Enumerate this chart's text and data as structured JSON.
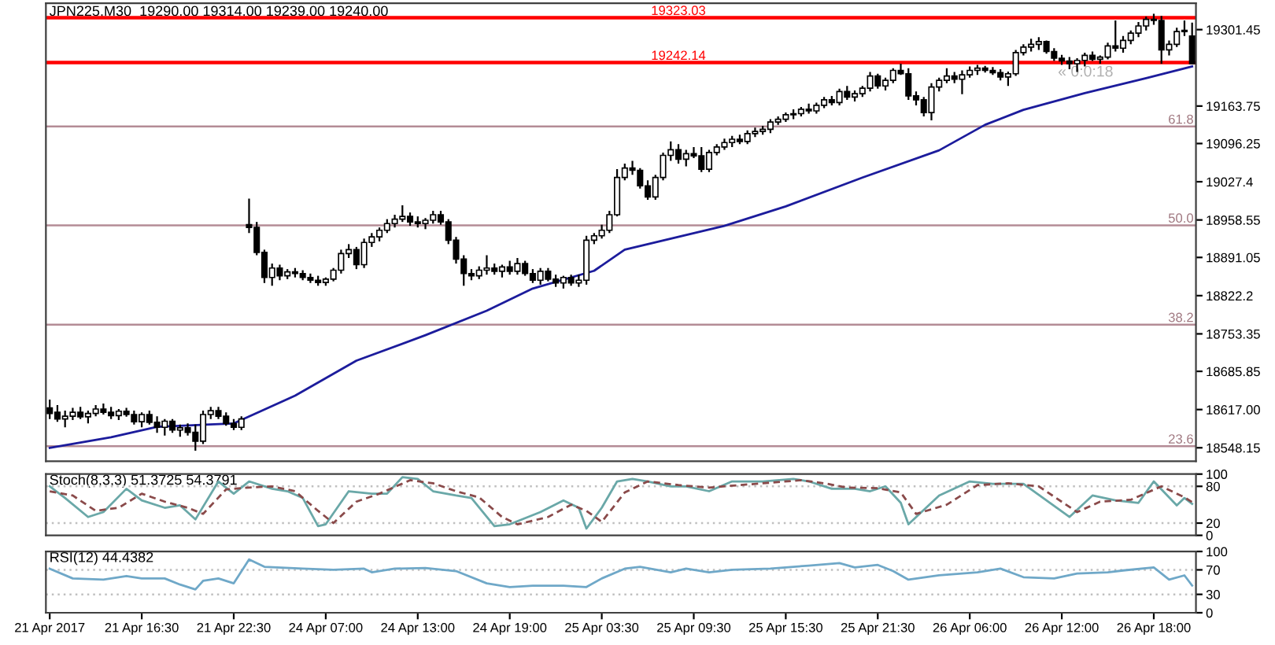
{
  "chart_data": [
    {
      "type": "candlestick",
      "title": "JPN225,M30  19290.00 19314.00 19239.00 19240.00",
      "categories": [
        null,
        null,
        null,
        null,
        null,
        null,
        null,
        null,
        null,
        null,
        null,
        null,
        null,
        null,
        null,
        null,
        null,
        null,
        null,
        null,
        null,
        null,
        null,
        null,
        null,
        null,
        null,
        null,
        null,
        null,
        null,
        null,
        null,
        null,
        null,
        null,
        null,
        null,
        null,
        null,
        null,
        null,
        null,
        null,
        null,
        null,
        null,
        null,
        null,
        null,
        null,
        null,
        null,
        null,
        null,
        null,
        null,
        null,
        null,
        null,
        null,
        null,
        null,
        null,
        null,
        null,
        null,
        null,
        null,
        null,
        null,
        null,
        null,
        null,
        null,
        null,
        null,
        null,
        null,
        null,
        null,
        null,
        null,
        null,
        null,
        null,
        null,
        null,
        null,
        null,
        null,
        null,
        null,
        null,
        null,
        null,
        null,
        null,
        null,
        null,
        null,
        null,
        null,
        null,
        null,
        null,
        null,
        null,
        null,
        null,
        null,
        null,
        null,
        null,
        null,
        null,
        null,
        null,
        null,
        null,
        null,
        null,
        null,
        null,
        null,
        null,
        null,
        null,
        null,
        null,
        null,
        null,
        null,
        null,
        null,
        null,
        null,
        null,
        null,
        null,
        null,
        null,
        null,
        null,
        null,
        null,
        null,
        null,
        null,
        null
      ],
      "ohlc": [
        [
          18620,
          18635,
          18600,
          18610
        ],
        [
          18612,
          18625,
          18595,
          18600
        ],
        [
          18600,
          18615,
          18585,
          18605
        ],
        [
          18605,
          18620,
          18598,
          18612
        ],
        [
          18612,
          18622,
          18600,
          18604
        ],
        [
          18604,
          18615,
          18592,
          18610
        ],
        [
          18610,
          18625,
          18605,
          18618
        ],
        [
          18618,
          18628,
          18608,
          18612
        ],
        [
          18612,
          18622,
          18600,
          18606
        ],
        [
          18606,
          18618,
          18598,
          18614
        ],
        [
          18614,
          18620,
          18604,
          18608
        ],
        [
          18608,
          18615,
          18590,
          18595
        ],
        [
          18595,
          18612,
          18585,
          18608
        ],
        [
          18608,
          18615,
          18590,
          18594
        ],
        [
          18594,
          18605,
          18575,
          18585
        ],
        [
          18585,
          18600,
          18570,
          18596
        ],
        [
          18596,
          18600,
          18575,
          18580
        ],
        [
          18580,
          18590,
          18568,
          18584
        ],
        [
          18584,
          18592,
          18570,
          18576
        ],
        [
          18576,
          18590,
          18543,
          18560
        ],
        [
          18560,
          18615,
          18555,
          18608
        ],
        [
          18608,
          18622,
          18600,
          18615
        ],
        [
          18615,
          18622,
          18600,
          18605
        ],
        [
          18605,
          18612,
          18588,
          18592
        ],
        [
          18592,
          18600,
          18580,
          18585
        ],
        [
          18585,
          18605,
          18580,
          18600
        ],
        [
          18950,
          18997,
          18935,
          18945
        ],
        [
          18945,
          18955,
          18895,
          18900
        ],
        [
          18900,
          18905,
          18845,
          18855
        ],
        [
          18855,
          18880,
          18840,
          18872
        ],
        [
          18872,
          18878,
          18850,
          18858
        ],
        [
          18858,
          18870,
          18852,
          18865
        ],
        [
          18865,
          18872,
          18855,
          18862
        ],
        [
          18862,
          18868,
          18850,
          18855
        ],
        [
          18855,
          18862,
          18845,
          18850
        ],
        [
          18850,
          18858,
          18840,
          18846
        ],
        [
          18846,
          18855,
          18840,
          18852
        ],
        [
          18852,
          18872,
          18848,
          18868
        ],
        [
          18868,
          18905,
          18862,
          18898
        ],
        [
          18898,
          18915,
          18890,
          18905
        ],
        [
          18905,
          18910,
          18870,
          18878
        ],
        [
          18878,
          18925,
          18872,
          18918
        ],
        [
          18918,
          18935,
          18910,
          18928
        ],
        [
          18928,
          18945,
          18920,
          18940
        ],
        [
          18940,
          18960,
          18935,
          18952
        ],
        [
          18952,
          18968,
          18945,
          18960
        ],
        [
          18960,
          18985,
          18955,
          18965
        ],
        [
          18965,
          18972,
          18948,
          18955
        ],
        [
          18955,
          18965,
          18945,
          18952
        ],
        [
          18952,
          18962,
          18942,
          18958
        ],
        [
          18958,
          18975,
          18952,
          18968
        ],
        [
          18968,
          18975,
          18950,
          18955
        ],
        [
          18955,
          18960,
          18915,
          18922
        ],
        [
          18922,
          18928,
          18880,
          18888
        ],
        [
          18888,
          18895,
          18840,
          18862
        ],
        [
          18862,
          18870,
          18850,
          18858
        ],
        [
          18858,
          18875,
          18852,
          18868
        ],
        [
          18868,
          18895,
          18860,
          18872
        ],
        [
          18872,
          18880,
          18860,
          18866
        ],
        [
          18866,
          18878,
          18855,
          18874
        ],
        [
          18874,
          18885,
          18860,
          18866
        ],
        [
          18866,
          18890,
          18860,
          18880
        ],
        [
          18880,
          18885,
          18858,
          18862
        ],
        [
          18862,
          18870,
          18845,
          18850
        ],
        [
          18850,
          18872,
          18842,
          18866
        ],
        [
          18866,
          18872,
          18848,
          18852
        ],
        [
          18852,
          18860,
          18838,
          18845
        ],
        [
          18845,
          18858,
          18835,
          18855
        ],
        [
          18855,
          18860,
          18840,
          18845
        ],
        [
          18845,
          18860,
          18838,
          18850
        ],
        [
          18850,
          18930,
          18842,
          18922
        ],
        [
          18922,
          18935,
          18915,
          18930
        ],
        [
          18930,
          18950,
          18925,
          18940
        ],
        [
          18940,
          18975,
          18935,
          18968
        ],
        [
          18968,
          19050,
          18965,
          19035
        ],
        [
          19035,
          19060,
          19030,
          19052
        ],
        [
          19052,
          19065,
          19040,
          19048
        ],
        [
          19048,
          19052,
          19015,
          19020
        ],
        [
          19020,
          19030,
          18995,
          19000
        ],
        [
          19000,
          19040,
          18995,
          19035
        ],
        [
          19035,
          19080,
          19030,
          19075
        ],
        [
          19075,
          19100,
          19065,
          19085
        ],
        [
          19085,
          19095,
          19060,
          19068
        ],
        [
          19068,
          19085,
          19055,
          19078
        ],
        [
          19078,
          19090,
          19070,
          19074
        ],
        [
          19074,
          19090,
          19045,
          19050
        ],
        [
          19050,
          19085,
          19045,
          19080
        ],
        [
          19080,
          19095,
          19075,
          19090
        ],
        [
          19090,
          19105,
          19085,
          19098
        ],
        [
          19098,
          19110,
          19090,
          19104
        ],
        [
          19104,
          19112,
          19095,
          19100
        ],
        [
          19100,
          19120,
          19095,
          19114
        ],
        [
          19114,
          19125,
          19108,
          19118
        ],
        [
          19118,
          19128,
          19112,
          19122
        ],
        [
          19122,
          19140,
          19115,
          19135
        ],
        [
          19135,
          19145,
          19130,
          19140
        ],
        [
          19140,
          19152,
          19135,
          19148
        ],
        [
          19148,
          19158,
          19140,
          19150
        ],
        [
          19150,
          19162,
          19145,
          19158
        ],
        [
          19158,
          19168,
          19150,
          19155
        ],
        [
          19155,
          19170,
          19150,
          19165
        ],
        [
          19165,
          19180,
          19160,
          19175
        ],
        [
          19175,
          19182,
          19165,
          19170
        ],
        [
          19170,
          19195,
          19165,
          19190
        ],
        [
          19190,
          19200,
          19175,
          19180
        ],
        [
          19180,
          19192,
          19172,
          19186
        ],
        [
          19186,
          19200,
          19180,
          19196
        ],
        [
          19196,
          19225,
          19190,
          19218
        ],
        [
          19218,
          19222,
          19195,
          19200
        ],
        [
          19200,
          19215,
          19192,
          19210
        ],
        [
          19210,
          19232,
          19205,
          19228
        ],
        [
          19228,
          19240,
          19220,
          19222
        ],
        [
          19222,
          19232,
          19175,
          19182
        ],
        [
          19182,
          19190,
          19165,
          19175
        ],
        [
          19175,
          19180,
          19145,
          19152
        ],
        [
          19152,
          19205,
          19138,
          19198
        ],
        [
          19198,
          19215,
          19190,
          19210
        ],
        [
          19210,
          19232,
          19205,
          19218
        ],
        [
          19218,
          19225,
          19205,
          19212
        ],
        [
          19212,
          19228,
          19185,
          19220
        ],
        [
          19220,
          19235,
          19215,
          19228
        ],
        [
          19228,
          19238,
          19220,
          19232
        ],
        [
          19232,
          19236,
          19224,
          19228
        ],
        [
          19228,
          19234,
          19220,
          19224
        ],
        [
          19224,
          19230,
          19210,
          19216
        ],
        [
          19216,
          19226,
          19200,
          19222
        ],
        [
          19222,
          19265,
          19218,
          19260
        ],
        [
          19260,
          19275,
          19255,
          19270
        ],
        [
          19270,
          19285,
          19262,
          19275
        ],
        [
          19275,
          19288,
          19265,
          19280
        ],
        [
          19280,
          19282,
          19258,
          19262
        ],
        [
          19262,
          19268,
          19245,
          19250
        ],
        [
          19250,
          19256,
          19238,
          19245
        ],
        [
          19245,
          19252,
          19230,
          19240
        ],
        [
          19240,
          19250,
          19225,
          19246
        ],
        [
          19246,
          19260,
          19235,
          19255
        ],
        [
          19255,
          19262,
          19245,
          19248
        ],
        [
          19248,
          19255,
          19240,
          19252
        ],
        [
          19252,
          19278,
          19248,
          19272
        ],
        [
          19272,
          19318,
          19262,
          19268
        ],
        [
          19268,
          19290,
          19260,
          19282
        ],
        [
          19282,
          19300,
          19275,
          19295
        ],
        [
          19295,
          19315,
          19288,
          19308
        ],
        [
          19308,
          19325,
          19300,
          19320
        ],
        [
          19320,
          19330,
          19310,
          19318
        ],
        [
          19318,
          19326,
          19240,
          19265
        ],
        [
          19265,
          19282,
          19255,
          19275
        ],
        [
          19275,
          19305,
          19270,
          19298
        ],
        [
          19298,
          19318,
          19290,
          19300
        ],
        [
          19290,
          19314,
          19239,
          19240
        ]
      ],
      "series": [
        {
          "type": "line",
          "color": "#1c1c9c",
          "values": [
            18548,
            null,
            null,
            null,
            null,
            null,
            null,
            null,
            18567,
            null,
            null,
            null,
            null,
            null,
            18586,
            null,
            null,
            null,
            null,
            null,
            null,
            null,
            null,
            null,
            18592,
            null,
            null,
            null,
            null,
            null,
            null,
            null,
            18642,
            null,
            null,
            null,
            null,
            null,
            null,
            null,
            18705,
            null,
            null,
            null,
            null,
            null,
            null,
            null,
            null,
            18751,
            null,
            null,
            null,
            null,
            null,
            null,
            null,
            18795,
            null,
            null,
            null,
            null,
            null,
            18835,
            null,
            null,
            null,
            null,
            null,
            null,
            null,
            18867,
            null,
            null,
            null,
            18905,
            null,
            null,
            null,
            null,
            null,
            null,
            null,
            null,
            null,
            null,
            null,
            null,
            18948,
            null,
            null,
            null,
            null,
            null,
            null,
            null,
            18983,
            null,
            null,
            null,
            null,
            null,
            null,
            null,
            null,
            null,
            19035,
            null,
            null,
            null,
            null,
            null,
            null,
            null,
            null,
            null,
            19084,
            null,
            null,
            null,
            null,
            null,
            19130,
            null,
            null,
            null,
            null,
            19157,
            null,
            null,
            null,
            null,
            null,
            null,
            null,
            19187,
            null,
            null,
            null,
            null,
            null,
            null,
            null,
            19214,
            null,
            null,
            null,
            null,
            null,
            19235
          ]
        }
      ],
      "ylim": [
        18524,
        19349
      ],
      "yticks": [
        19301.45,
        19163.75,
        19096.25,
        19027.4,
        18958.55,
        18891.05,
        18822.2,
        18753.35,
        18685.85,
        {
          "value": 18617,
          "label": "18617.00"
        },
        18548.15
      ],
      "ref_lines": [
        {
          "axis": "y",
          "value": 19323.03,
          "label": "19323.03",
          "color": "#ff0000"
        },
        {
          "axis": "y",
          "value": 19242.14,
          "label": "19242.14",
          "color": "#ff0000"
        },
        {
          "axis": "y",
          "value": 19127,
          "color": "#b48c96"
        },
        {
          "axis": "y",
          "value": 18949,
          "color": "#b48c96"
        },
        {
          "axis": "y",
          "value": 18770,
          "color": "#b48c96"
        },
        {
          "axis": "y",
          "value": 18551,
          "color": "#b48c96"
        }
      ],
      "annotations": [
        "« 0:0:18",
        {
          "text": "61.8",
          "y": 19127
        },
        {
          "text": "50.0",
          "y": 18949
        },
        {
          "text": "38.2",
          "y": 18770
        },
        {
          "text": "23.6",
          "y": 18551
        }
      ],
      "tick_labels": "y"
    },
    {
      "type": "line",
      "title": "Stoch(8,3,3) 51.3725 54.3791",
      "categories": [
        null,
        null,
        null,
        null,
        null,
        null,
        null,
        null,
        null,
        null,
        null,
        null,
        null,
        null,
        null,
        null,
        null,
        null,
        null,
        null,
        null,
        null,
        null,
        null,
        null,
        null,
        null,
        null,
        null,
        null,
        null,
        null,
        null,
        null,
        null,
        null,
        null,
        null,
        null,
        null,
        null,
        null,
        null,
        null,
        null,
        null,
        null,
        null,
        null,
        null,
        null,
        null,
        null,
        null,
        null,
        null,
        null,
        null,
        null,
        null,
        null,
        null,
        null,
        null,
        null,
        null,
        null,
        null,
        null,
        null,
        null,
        null,
        null,
        null,
        null,
        null,
        null,
        null,
        null,
        null,
        null,
        null,
        null,
        null,
        null,
        null,
        null,
        null,
        null,
        null,
        null,
        null,
        null,
        null,
        null,
        null,
        null,
        null,
        null,
        null,
        null,
        null,
        null,
        null,
        null,
        null,
        null,
        null,
        null,
        null,
        null,
        null,
        null,
        null,
        null,
        null,
        null,
        null,
        null,
        null,
        null,
        null,
        null,
        null,
        null,
        null,
        null,
        null,
        null,
        null,
        null,
        null,
        null,
        null,
        null,
        null,
        null,
        null,
        null,
        null,
        null,
        null,
        null,
        null,
        null,
        null,
        null,
        null,
        null,
        null
      ],
      "series": [
        {
          "color": "#6aa8a8",
          "values": [
            80,
            null,
            61,
            null,
            null,
            30,
            null,
            38,
            null,
            null,
            76,
            null,
            57,
            null,
            null,
            45,
            null,
            49,
            null,
            26,
            null,
            null,
            88,
            null,
            68,
            null,
            88,
            null,
            null,
            76,
            null,
            72,
            null,
            61,
            null,
            15,
            18,
            null,
            null,
            72,
            null,
            null,
            68,
            null,
            68,
            null,
            95,
            null,
            92,
            null,
            72,
            null,
            null,
            65,
            null,
            61,
            null,
            null,
            15,
            null,
            18,
            null,
            null,
            null,
            38,
            null,
            null,
            57,
            null,
            45,
            11,
            null,
            45,
            null,
            88,
            null,
            92,
            null,
            88,
            null,
            null,
            80,
            null,
            80,
            null,
            null,
            72,
            null,
            null,
            88,
            null,
            null,
            null,
            88,
            null,
            null,
            null,
            92,
            null,
            88,
            null,
            null,
            76,
            null,
            null,
            76,
            null,
            72,
            null,
            80,
            null,
            53,
            18,
            null,
            null,
            null,
            65,
            null,
            null,
            null,
            88,
            null,
            null,
            84,
            null,
            null,
            null,
            84,
            null,
            null,
            null,
            null,
            null,
            30,
            null,
            null,
            65,
            null,
            null,
            57,
            null,
            null,
            53,
            null,
            88,
            null,
            null,
            49,
            61,
            51.3725
          ]
        },
        {
          "color": "#8a4a4a",
          "line_style": "dashed",
          "values": [
            72,
            null,
            null,
            65,
            null,
            null,
            40,
            null,
            null,
            45,
            null,
            null,
            68,
            null,
            null,
            55,
            null,
            null,
            45,
            null,
            35,
            null,
            null,
            75,
            null,
            null,
            78,
            null,
            null,
            80,
            null,
            null,
            72,
            null,
            null,
            40,
            null,
            20,
            null,
            null,
            55,
            null,
            null,
            68,
            null,
            null,
            null,
            90,
            null,
            null,
            85,
            null,
            null,
            72,
            null,
            null,
            62,
            null,
            null,
            30,
            null,
            18,
            null,
            null,
            null,
            30,
            null,
            null,
            50,
            null,
            40,
            null,
            22,
            null,
            null,
            70,
            null,
            null,
            88,
            null,
            null,
            null,
            82,
            null,
            null,
            null,
            78,
            null,
            null,
            null,
            82,
            null,
            null,
            null,
            86,
            null,
            null,
            null,
            90,
            null,
            null,
            85,
            null,
            null,
            78,
            null,
            null,
            null,
            77,
            null,
            null,
            70,
            null,
            35,
            null,
            null,
            null,
            50,
            null,
            null,
            null,
            82,
            null,
            null,
            null,
            85,
            null,
            null,
            null,
            80,
            null,
            null,
            null,
            null,
            38,
            null,
            null,
            55,
            null,
            null,
            null,
            58,
            null,
            null,
            null,
            80,
            null,
            null,
            62,
            54.3791
          ]
        }
      ],
      "ylim": [
        0,
        100
      ],
      "yticks": [
        100,
        80,
        20,
        0
      ],
      "ref_lines": [
        {
          "axis": "y",
          "value": 80,
          "color": "#c0c0c0",
          "line_style": "dotted"
        },
        {
          "axis": "y",
          "value": 20,
          "color": "#c0c0c0",
          "line_style": "dotted"
        }
      ],
      "tick_labels": "y"
    },
    {
      "type": "line",
      "title": "RSI(12) 44.4382",
      "categories": [
        "21 Apr 2017",
        null,
        null,
        null,
        null,
        null,
        null,
        null,
        null,
        null,
        null,
        null,
        "21 Apr 16:30",
        null,
        null,
        null,
        null,
        null,
        null,
        null,
        null,
        null,
        null,
        null,
        "21 Apr 22:30",
        null,
        null,
        null,
        null,
        null,
        null,
        null,
        null,
        null,
        null,
        null,
        "24 Apr 07:00",
        null,
        null,
        null,
        null,
        null,
        null,
        null,
        null,
        null,
        null,
        null,
        "24 Apr 13:00",
        null,
        null,
        null,
        null,
        null,
        null,
        null,
        null,
        null,
        null,
        null,
        "24 Apr 19:00",
        null,
        null,
        null,
        null,
        null,
        null,
        null,
        null,
        null,
        null,
        null,
        "25 Apr 03:30",
        null,
        null,
        null,
        null,
        null,
        null,
        null,
        null,
        null,
        null,
        null,
        "25 Apr 09:30",
        null,
        null,
        null,
        null,
        null,
        null,
        null,
        null,
        null,
        null,
        null,
        "25 Apr 15:30",
        null,
        null,
        null,
        null,
        null,
        null,
        null,
        null,
        null,
        null,
        null,
        "25 Apr 21:30",
        null,
        null,
        null,
        null,
        null,
        null,
        null,
        null,
        null,
        null,
        null,
        "26 Apr 06:00",
        null,
        null,
        null,
        null,
        null,
        null,
        null,
        null,
        null,
        null,
        null,
        "26 Apr 12:00",
        null,
        null,
        null,
        null,
        null,
        null,
        null,
        null,
        null,
        null,
        null,
        "26 Apr 18:00",
        null,
        null,
        null,
        null,
        null
      ],
      "series": [
        {
          "color": "#6fa8c8",
          "values": [
            72,
            null,
            null,
            56,
            null,
            null,
            null,
            54,
            null,
            null,
            60,
            null,
            56,
            null,
            null,
            56,
            null,
            46,
            null,
            38,
            52,
            null,
            56,
            null,
            48,
            null,
            87,
            null,
            75,
            null,
            null,
            null,
            null,
            72,
            null,
            null,
            null,
            70,
            null,
            null,
            null,
            72,
            66,
            null,
            null,
            72,
            null,
            null,
            null,
            73,
            null,
            null,
            null,
            68,
            null,
            null,
            null,
            48,
            null,
            null,
            42,
            null,
            null,
            44,
            null,
            null,
            null,
            44,
            null,
            null,
            42,
            null,
            56,
            null,
            null,
            72,
            null,
            75,
            null,
            null,
            null,
            66,
            null,
            72,
            null,
            null,
            66,
            null,
            null,
            70,
            null,
            null,
            null,
            null,
            72,
            null,
            null,
            75,
            null,
            77,
            null,
            null,
            null,
            81,
            null,
            74,
            null,
            null,
            78,
            null,
            68,
            null,
            54,
            null,
            null,
            null,
            61,
            null,
            null,
            null,
            null,
            66,
            null,
            null,
            72,
            null,
            null,
            58,
            null,
            null,
            null,
            56,
            null,
            null,
            64,
            null,
            null,
            null,
            66,
            null,
            69,
            null,
            null,
            null,
            74,
            null,
            54,
            null,
            61,
            44.4382
          ]
        }
      ],
      "ylim": [
        0,
        100
      ],
      "yticks": [
        100,
        70,
        30,
        0
      ],
      "ref_lines": [
        {
          "axis": "y",
          "value": 70,
          "color": "#c0c0c0",
          "line_style": "dotted"
        },
        {
          "axis": "y",
          "value": 30,
          "color": "#c0c0c0",
          "line_style": "dotted"
        }
      ]
    }
  ]
}
